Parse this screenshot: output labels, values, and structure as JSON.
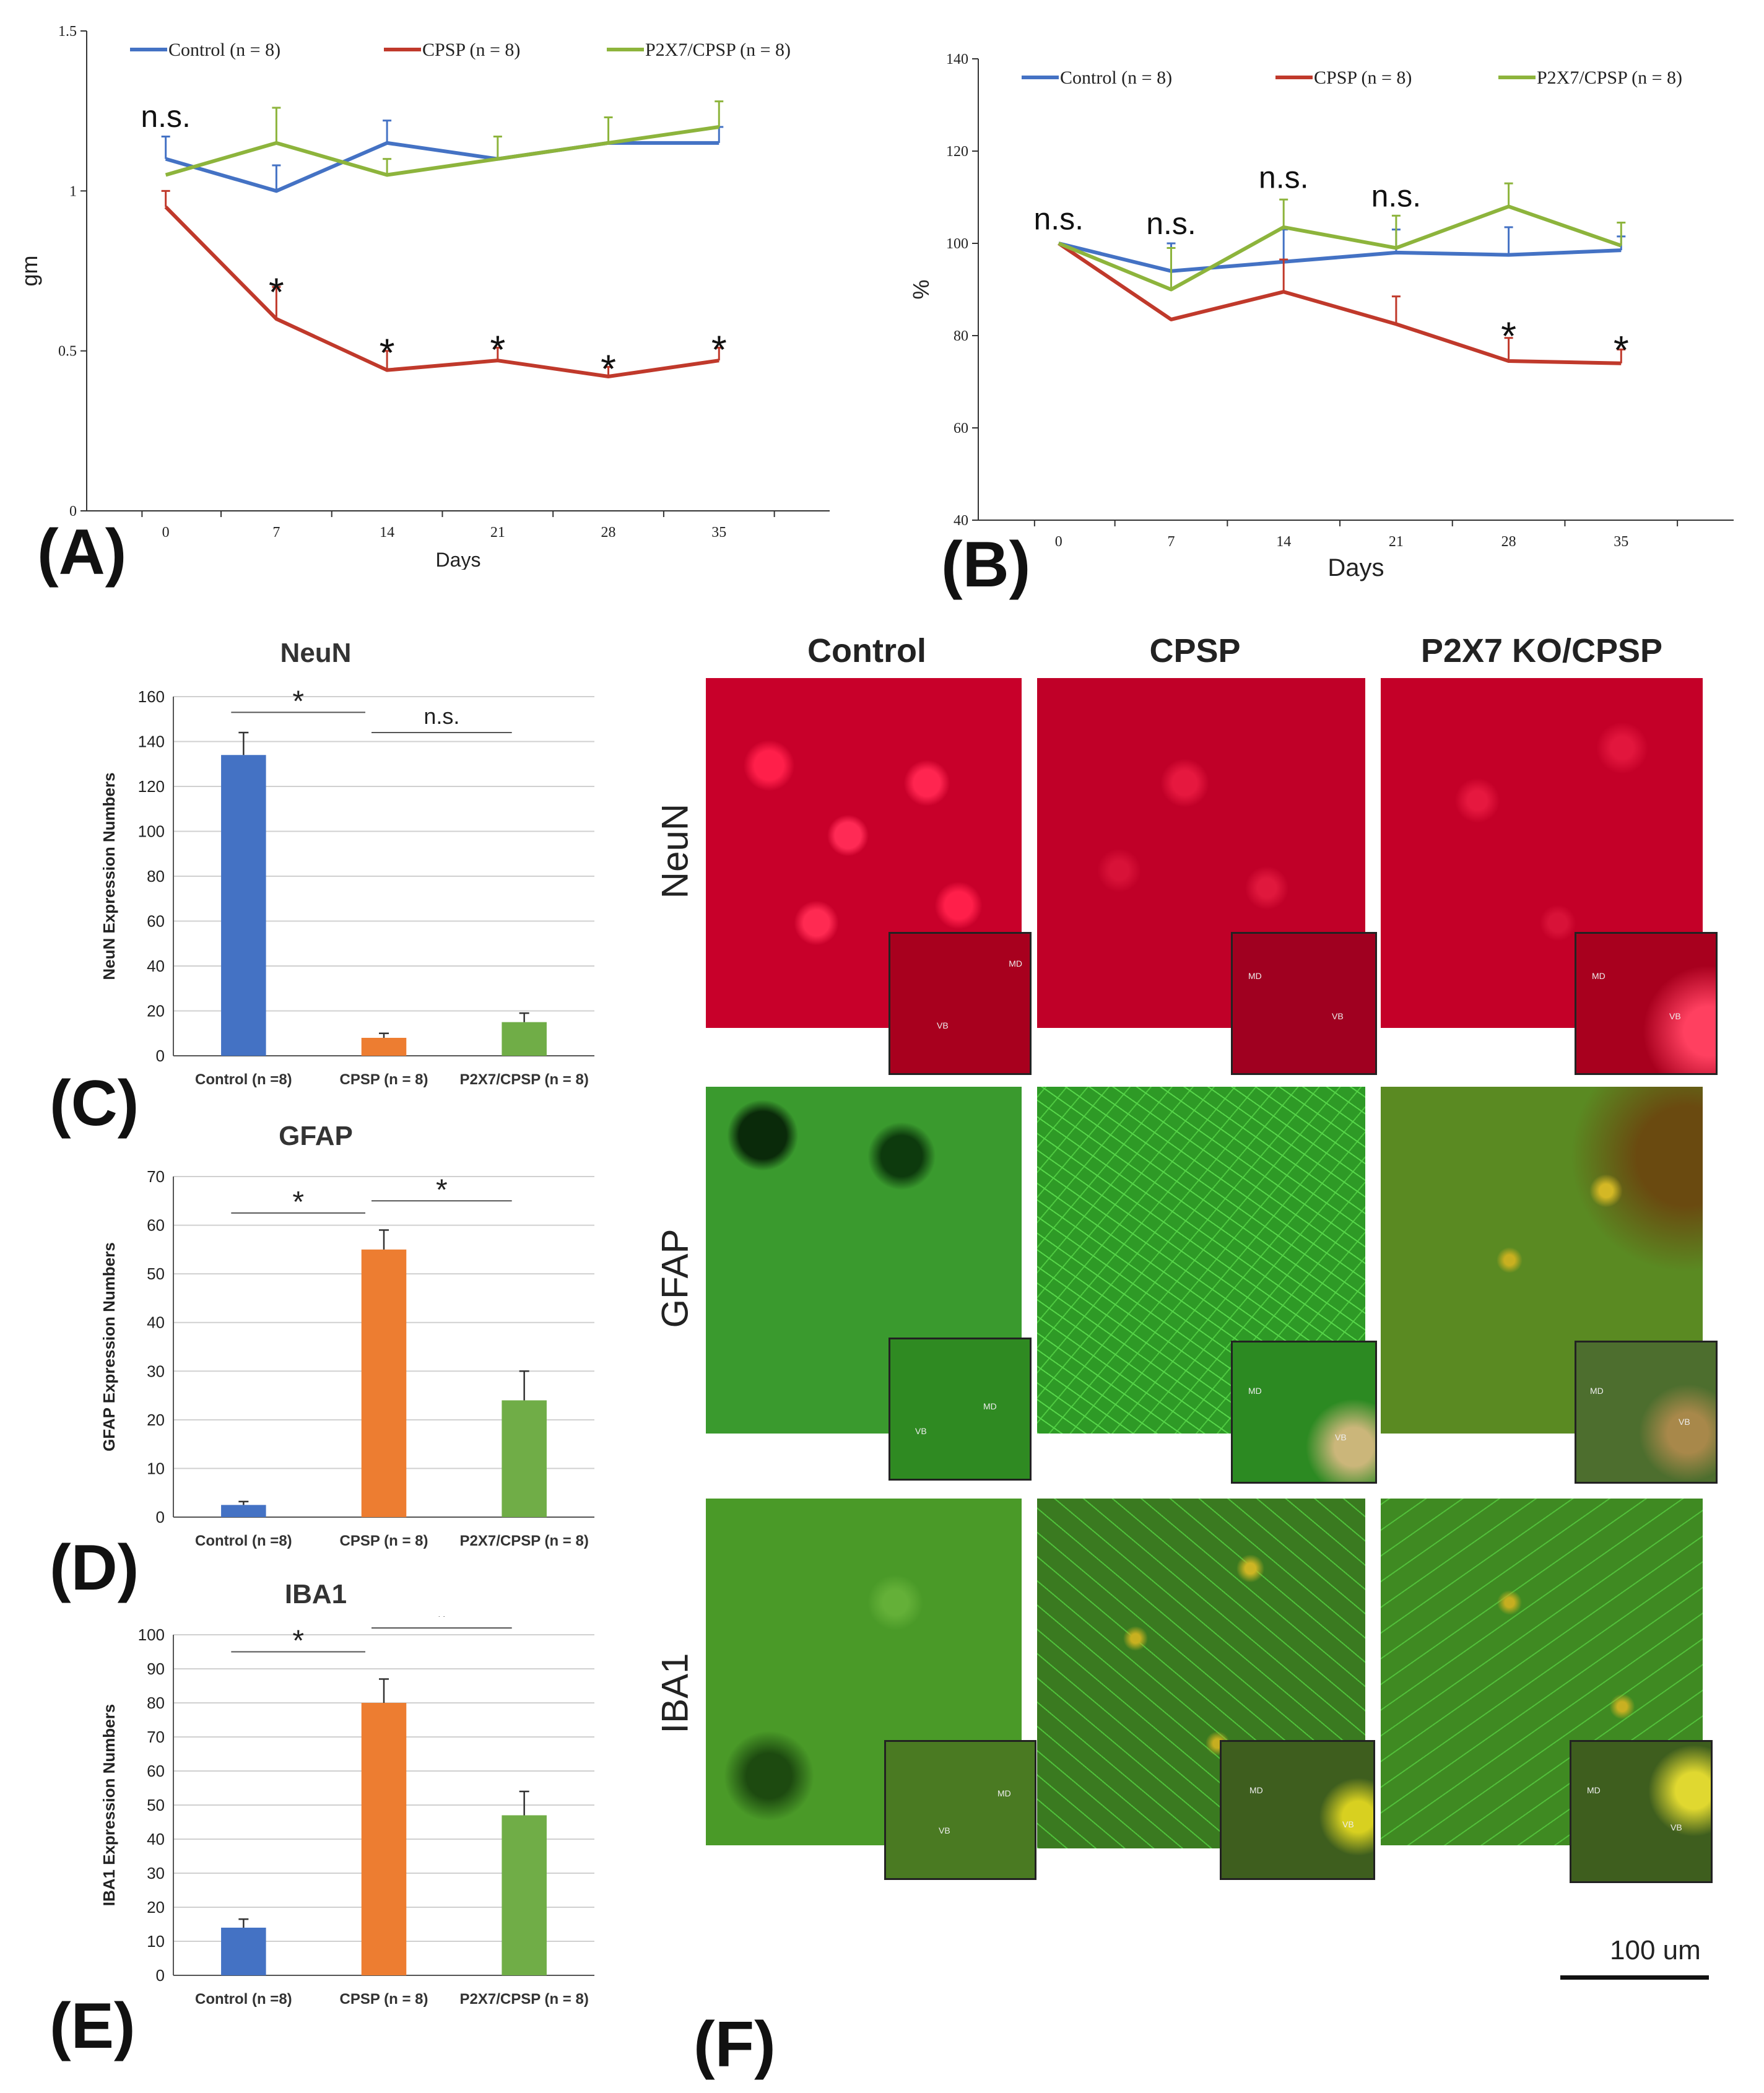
{
  "panels": {
    "A": "(A)",
    "B": "(B)",
    "C": "(C)",
    "D": "(D)",
    "E": "(E)",
    "F": "(F)"
  },
  "colors": {
    "control": "#4472c4",
    "cpsp": "#c0392b",
    "p2x7": "#8db43c",
    "bar_blue": "#4472c4",
    "bar_orange": "#ed7d31",
    "bar_green": "#70ad47"
  },
  "chart_data": [
    {
      "id": "A",
      "type": "line",
      "title": "",
      "xlabel": "Days",
      "ylabel": "gm",
      "x": [
        0,
        7,
        14,
        21,
        28,
        35
      ],
      "ylim": [
        0,
        1.5
      ],
      "yticks": [
        "0",
        "0.5",
        "1",
        "1.5"
      ],
      "xticks": [
        "0",
        "7",
        "14",
        "21",
        "28",
        "35"
      ],
      "legend_position": "top",
      "series": [
        {
          "name": "Control (n = 8)",
          "color": "#4472c4",
          "values": [
            1.1,
            1.0,
            1.15,
            1.1,
            1.15,
            1.15
          ],
          "err": [
            0.07,
            0.08,
            0.07,
            0.0,
            0.0,
            0.05
          ]
        },
        {
          "name": "CPSP (n = 8)",
          "color": "#c0392b",
          "values": [
            0.95,
            0.6,
            0.44,
            0.47,
            0.42,
            0.47
          ],
          "err": [
            0.05,
            0.1,
            0.06,
            0.04,
            0.03,
            0.04
          ]
        },
        {
          "name": "P2X7/CPSP (n = 8)",
          "color": "#8db43c",
          "values": [
            1.05,
            1.15,
            1.05,
            1.1,
            1.15,
            1.2
          ],
          "err": [
            0.0,
            0.11,
            0.05,
            0.07,
            0.08,
            0.08
          ]
        }
      ],
      "annotations": [
        {
          "x": 0,
          "y": 1.2,
          "text": "n.s."
        },
        {
          "x": 7,
          "y": 0.7,
          "text": "*"
        },
        {
          "x": 14,
          "y": 0.51,
          "text": "*"
        },
        {
          "x": 21,
          "y": 0.52,
          "text": "*"
        },
        {
          "x": 28,
          "y": 0.46,
          "text": "*"
        },
        {
          "x": 35,
          "y": 0.52,
          "text": "*"
        }
      ]
    },
    {
      "id": "B",
      "type": "line",
      "title": "",
      "xlabel": "Days",
      "ylabel": "%",
      "x": [
        0,
        7,
        14,
        21,
        28,
        35
      ],
      "ylim": [
        40,
        140
      ],
      "yticks": [
        "40",
        "60",
        "80",
        "100",
        "120",
        "140"
      ],
      "xticks": [
        "0",
        "7",
        "14",
        "21",
        "28",
        "35"
      ],
      "legend_position": "top",
      "series": [
        {
          "name": "Control (n = 8)",
          "color": "#4472c4",
          "values": [
            100,
            94,
            96,
            98,
            97.5,
            98.5
          ],
          "err": [
            0,
            6,
            7,
            5,
            6,
            3
          ]
        },
        {
          "name": "CPSP (n = 8)",
          "color": "#c0392b",
          "values": [
            100,
            83.5,
            89.5,
            82.5,
            74.5,
            74
          ],
          "err": [
            0,
            0,
            7,
            6,
            5,
            3
          ]
        },
        {
          "name": "P2X7/CPSP (n = 8)",
          "color": "#8db43c",
          "values": [
            100,
            90,
            103.5,
            99,
            108,
            99.5
          ],
          "err": [
            0,
            9,
            6,
            7,
            5,
            5
          ]
        }
      ],
      "annotations": [
        {
          "x": 0,
          "y": 103,
          "text": "n.s."
        },
        {
          "x": 7,
          "y": 102,
          "text": "n.s."
        },
        {
          "x": 14,
          "y": 112,
          "text": "n.s."
        },
        {
          "x": 21,
          "y": 108,
          "text": "n.s."
        },
        {
          "x": 28,
          "y": 81,
          "text": "*"
        },
        {
          "x": 35,
          "y": 78,
          "text": "*"
        }
      ]
    },
    {
      "id": "C",
      "type": "bar",
      "title": "NeuN",
      "ylabel": "NeuN Expression Numbers",
      "categories": [
        "Control (n =8)",
        "CPSP (n = 8)",
        "P2X7/CPSP (n = 8)"
      ],
      "values": [
        134,
        8,
        15
      ],
      "err": [
        10,
        2,
        4
      ],
      "ylim": [
        0,
        160
      ],
      "yticks": [
        "0",
        "20",
        "40",
        "60",
        "80",
        "100",
        "120",
        "140",
        "160"
      ],
      "grid": true,
      "sig": [
        {
          "from": 0,
          "to": 1,
          "y": 153,
          "text": "*"
        },
        {
          "from": 1,
          "to": 2,
          "y": 144,
          "text": "n.s."
        }
      ]
    },
    {
      "id": "D",
      "type": "bar",
      "title": "GFAP",
      "ylabel": "GFAP Expression Numbers",
      "categories": [
        "Control (n =8)",
        "CPSP (n = 8)",
        "P2X7/CPSP (n = 8)"
      ],
      "values": [
        2.5,
        55,
        24
      ],
      "err": [
        0.7,
        4,
        6
      ],
      "ylim": [
        0,
        70
      ],
      "yticks": [
        "0",
        "10",
        "20",
        "30",
        "40",
        "50",
        "60",
        "70"
      ],
      "grid": true,
      "sig": [
        {
          "from": 0,
          "to": 1,
          "y": 62.5,
          "text": "*"
        },
        {
          "from": 1,
          "to": 2,
          "y": 65,
          "text": "*"
        }
      ]
    },
    {
      "id": "E",
      "type": "bar",
      "title": "IBA1",
      "ylabel": "IBA1 Expression Numbers",
      "categories": [
        "Control (n =8)",
        "CPSP (n = 8)",
        "P2X7/CPSP (n = 8)"
      ],
      "values": [
        14,
        80,
        47
      ],
      "err": [
        2.5,
        7,
        7
      ],
      "ylim": [
        0,
        100
      ],
      "yticks": [
        "0",
        "10",
        "20",
        "30",
        "40",
        "50",
        "60",
        "70",
        "80",
        "90",
        "100"
      ],
      "grid": true,
      "sig": [
        {
          "from": 0,
          "to": 1,
          "y": 95,
          "text": "*"
        },
        {
          "from": 1,
          "to": 2,
          "y": 102,
          "text": "*"
        }
      ]
    }
  ],
  "micrographs": {
    "columns": [
      "Control",
      "CPSP",
      "P2X7 KO/CPSP"
    ],
    "rows": [
      "NeuN",
      "GFAP",
      "IBA1"
    ],
    "inset_labels": {
      "md": "MD",
      "vb": "VB"
    },
    "scale_bar": "100 um"
  }
}
